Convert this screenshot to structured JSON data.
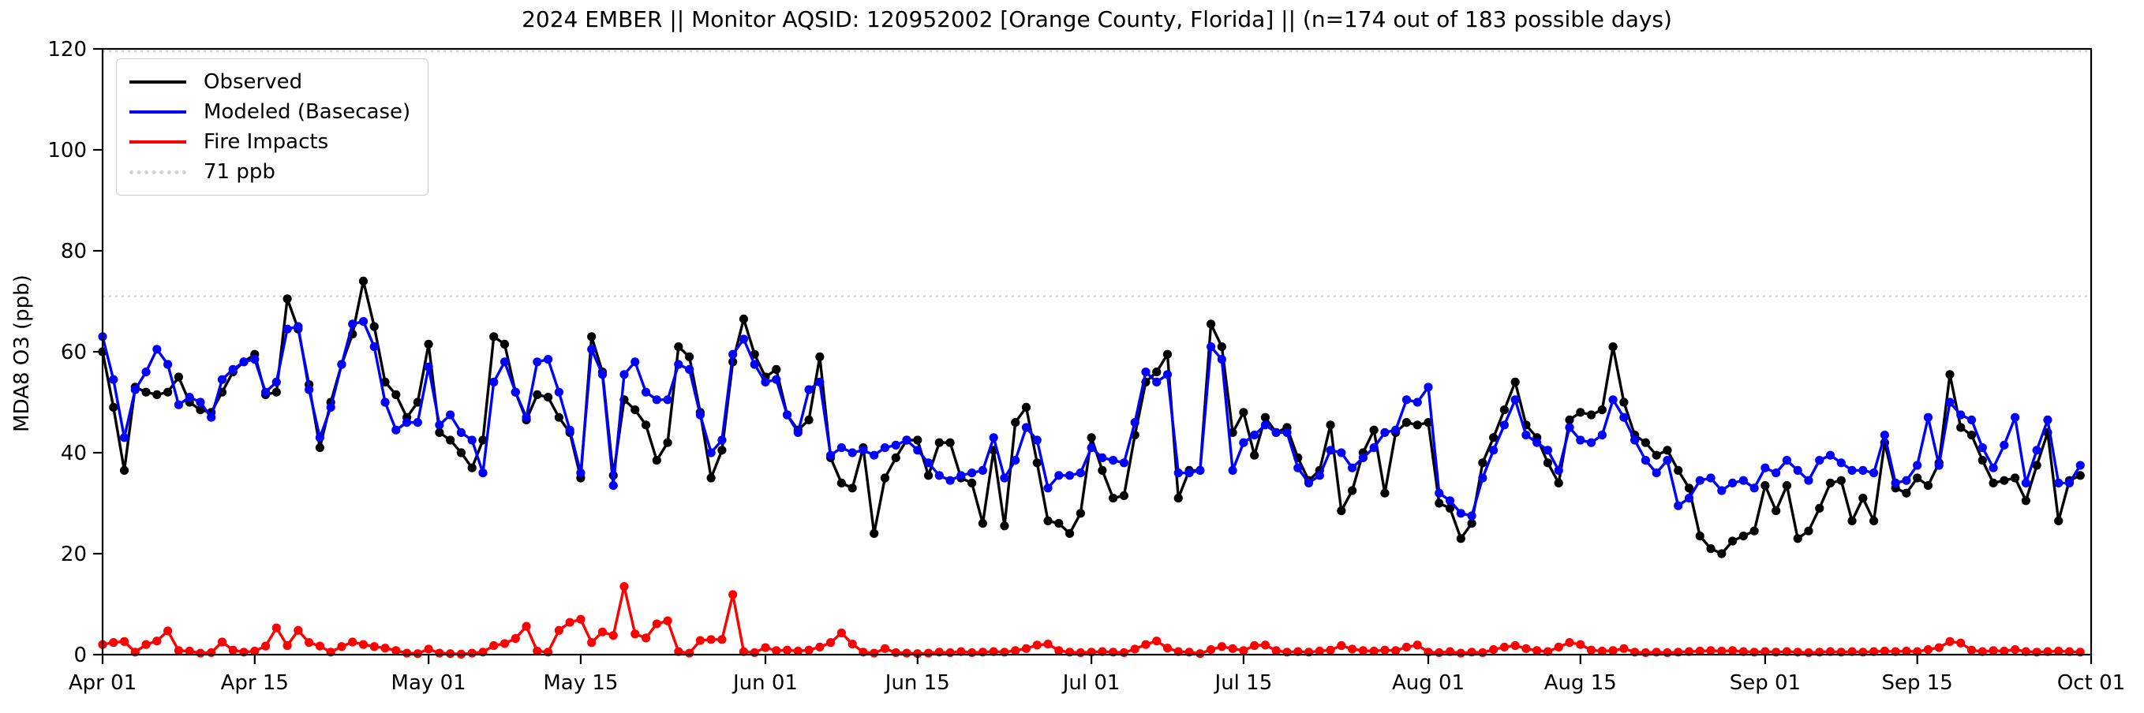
{
  "title": "2024 EMBER || Monitor AQSID: 120952002 [Orange County, Florida] || (n=174 out of 183 possible days)",
  "colors": {
    "observed": "#000000",
    "modeled": "#0000ff",
    "fire": "#ff0000",
    "threshold": "#d3d3d3",
    "axis": "#000000"
  },
  "legend": {
    "items": [
      {
        "key": "observed",
        "label": "Observed",
        "color": "#000000",
        "style": "solid"
      },
      {
        "key": "modeled",
        "label": "Modeled (Basecase)",
        "color": "#0000ff",
        "style": "solid"
      },
      {
        "key": "fire",
        "label": "Fire Impacts",
        "color": "#ff0000",
        "style": "solid"
      },
      {
        "key": "threshold",
        "label": "71 ppb",
        "color": "#d3d3d3",
        "style": "dotted"
      }
    ]
  },
  "chart_data": {
    "type": "line",
    "title": "2024 EMBER || Monitor AQSID: 120952002 [Orange County, Florida] || (n=174 out of 183 possible days)",
    "xlabel": "",
    "ylabel": "MDA8 O3 (ppb)",
    "ylim": [
      0,
      120
    ],
    "yticks": [
      0,
      20,
      40,
      60,
      80,
      100,
      120
    ],
    "grid": false,
    "legend_position": "upper left",
    "total_days": 183,
    "xtick_labels": [
      "Apr 01",
      "Apr 15",
      "May 01",
      "May 15",
      "Jun 01",
      "Jun 15",
      "Jul 01",
      "Jul 15",
      "Aug 01",
      "Aug 15",
      "Sep 01",
      "Sep 15",
      "Oct 01"
    ],
    "xtick_day_offsets": [
      0,
      14,
      30,
      44,
      61,
      75,
      91,
      105,
      122,
      136,
      153,
      167,
      183
    ],
    "reference_lines": [
      {
        "label": "71 ppb",
        "value": 71,
        "style": "dotted",
        "color": "#d3d3d3"
      },
      {
        "label": "",
        "value": 119.5,
        "style": "dotted",
        "color": "#d3d3d3"
      }
    ],
    "dates": [
      "Apr 01",
      "Apr 02",
      "Apr 03",
      "Apr 04",
      "Apr 05",
      "Apr 06",
      "Apr 07",
      "Apr 08",
      "Apr 09",
      "Apr 10",
      "Apr 11",
      "Apr 12",
      "Apr 13",
      "Apr 14",
      "Apr 15",
      "Apr 16",
      "Apr 17",
      "Apr 18",
      "Apr 19",
      "Apr 20",
      "Apr 21",
      "Apr 22",
      "Apr 23",
      "Apr 24",
      "Apr 25",
      "Apr 26",
      "Apr 27",
      "Apr 28",
      "Apr 29",
      "Apr 30",
      "May 01",
      "May 02",
      "May 03",
      "May 04",
      "May 05",
      "May 06",
      "May 07",
      "May 08",
      "May 09",
      "May 10",
      "May 11",
      "May 12",
      "May 13",
      "May 14",
      "May 15",
      "May 16",
      "May 17",
      "May 18",
      "May 19",
      "May 20",
      "May 21",
      "May 22",
      "May 23",
      "May 24",
      "May 25",
      "May 26",
      "May 27",
      "May 28",
      "May 29",
      "May 30",
      "May 31",
      "Jun 01",
      "Jun 02",
      "Jun 03",
      "Jun 04",
      "Jun 05",
      "Jun 06",
      "Jun 07",
      "Jun 08",
      "Jun 09",
      "Jun 10",
      "Jun 11",
      "Jun 12",
      "Jun 13",
      "Jun 14",
      "Jun 15",
      "Jun 16",
      "Jun 17",
      "Jun 18",
      "Jun 19",
      "Jun 20",
      "Jun 21",
      "Jun 22",
      "Jun 23",
      "Jun 24",
      "Jun 25",
      "Jun 26",
      "Jun 27",
      "Jun 28",
      "Jun 29",
      "Jun 30",
      "Jul 01",
      "Jul 02",
      "Jul 03",
      "Jul 04",
      "Jul 05",
      "Jul 06",
      "Jul 07",
      "Jul 08",
      "Jul 09",
      "Jul 10",
      "Jul 11",
      "Jul 12",
      "Jul 13",
      "Jul 14",
      "Jul 15",
      "Jul 16",
      "Jul 17",
      "Jul 18",
      "Jul 19",
      "Jul 20",
      "Jul 21",
      "Jul 22",
      "Jul 23",
      "Jul 24",
      "Jul 25",
      "Jul 26",
      "Jul 27",
      "Jul 28",
      "Jul 29",
      "Jul 30",
      "Jul 31",
      "Aug 01",
      "Aug 02",
      "Aug 03",
      "Aug 04",
      "Aug 05",
      "Aug 06",
      "Aug 07",
      "Aug 08",
      "Aug 09",
      "Aug 10",
      "Aug 11",
      "Aug 12",
      "Aug 13",
      "Aug 14",
      "Aug 15",
      "Aug 16",
      "Aug 17",
      "Aug 18",
      "Aug 19",
      "Aug 20",
      "Aug 21",
      "Aug 22",
      "Aug 23",
      "Aug 24",
      "Aug 25",
      "Aug 26",
      "Aug 27",
      "Aug 28",
      "Aug 29",
      "Aug 30",
      "Aug 31",
      "Sep 01",
      "Sep 02",
      "Sep 03",
      "Sep 04",
      "Sep 05",
      "Sep 06",
      "Sep 07",
      "Sep 08",
      "Sep 09",
      "Sep 10",
      "Sep 11",
      "Sep 12",
      "Sep 13",
      "Sep 14",
      "Sep 15",
      "Sep 16",
      "Sep 17",
      "Sep 18",
      "Sep 19",
      "Sep 20",
      "Sep 21",
      "Sep 22",
      "Sep 23",
      "Sep 24",
      "Sep 25",
      "Sep 26",
      "Sep 27",
      "Sep 28",
      "Sep 29",
      "Sep 30"
    ],
    "series": [
      {
        "name": "Observed",
        "color": "#000000",
        "values": [
          60,
          49,
          36.5,
          53,
          52,
          51.5,
          52,
          55,
          50,
          48.5,
          48,
          52,
          56,
          58,
          59.5,
          51.5,
          52,
          70.5,
          64.5,
          53.5,
          41,
          50,
          57.5,
          63.5,
          74,
          65,
          54,
          51.5,
          47,
          50,
          61.5,
          44,
          42.5,
          40,
          37,
          42.5,
          63,
          61.5,
          52,
          46.5,
          51.5,
          51,
          47,
          44,
          35,
          63,
          56,
          35.5,
          50.5,
          48.5,
          45.5,
          38.5,
          42,
          61,
          59,
          48,
          35,
          40.5,
          58,
          66.5,
          59.5,
          55,
          56.5,
          47.5,
          44.5,
          46.5,
          59,
          39,
          34,
          33,
          41,
          24,
          35,
          39,
          42.5,
          42.5,
          35.5,
          42,
          42,
          35,
          34,
          26,
          40.5,
          25.5,
          46,
          49,
          38,
          26.5,
          26,
          24,
          28,
          43,
          36.5,
          31,
          31.5,
          43.5,
          54,
          56,
          59.5,
          31,
          36.5,
          36.5,
          65.5,
          61,
          44,
          48,
          39.5,
          47,
          44,
          45,
          39,
          34.5,
          36.5,
          45.5,
          28.5,
          32.5,
          40,
          44.5,
          32,
          44,
          46,
          45.5,
          46,
          30,
          29,
          23,
          26,
          38,
          43,
          48.5,
          54,
          45.5,
          43,
          38,
          34,
          46.5,
          48,
          47.5,
          48.5,
          61,
          50,
          43.5,
          42,
          39.5,
          40.5,
          36.5,
          33,
          23.5,
          21,
          20,
          22.5,
          23.5,
          24.5,
          33.5,
          28.5,
          33.5,
          23,
          24.5,
          29,
          34,
          34.5,
          26.5,
          31,
          26.5,
          42,
          33,
          32,
          35,
          33.5,
          38,
          55.5,
          45,
          43.5,
          38.5,
          34,
          34.5,
          35,
          30.5,
          37.5,
          44,
          26.5,
          34.5,
          35.5
        ]
      },
      {
        "name": "Modeled (Basecase)",
        "color": "#0000ff",
        "values": [
          63,
          54.5,
          43,
          52.5,
          56,
          60.5,
          57.5,
          49.5,
          51,
          50,
          47,
          54.5,
          56.5,
          58,
          58.5,
          52,
          54,
          64.5,
          65,
          52.5,
          43,
          49,
          57.5,
          65.5,
          66,
          61,
          50,
          44.5,
          46,
          46,
          57,
          45.5,
          47.5,
          44,
          42.5,
          36,
          54,
          58,
          52,
          47,
          58,
          58.5,
          52,
          44.5,
          36,
          60.5,
          55.5,
          33.5,
          55.5,
          58,
          52,
          50.5,
          50.5,
          57.5,
          56.5,
          47.5,
          40,
          42.5,
          59.5,
          62.5,
          57.5,
          54,
          54.5,
          47.5,
          44,
          52.5,
          54,
          39.5,
          41,
          40,
          40.5,
          39.5,
          41,
          41.5,
          42.5,
          40.5,
          38,
          35.5,
          34.5,
          35.5,
          36,
          36.5,
          43,
          35,
          38.5,
          45,
          42.5,
          33,
          35.5,
          35.5,
          36,
          41,
          39,
          38.5,
          38,
          46,
          56,
          54,
          55.5,
          36,
          36,
          36.5,
          61,
          58.5,
          36.5,
          42,
          43.5,
          45.5,
          44,
          44,
          37,
          34,
          35.5,
          40.5,
          40,
          37,
          39,
          41,
          44,
          44.5,
          50.5,
          50,
          53,
          32,
          30.5,
          28,
          27.5,
          35,
          40.5,
          45.5,
          50.5,
          43.5,
          42,
          40.5,
          36.5,
          45,
          42.5,
          42,
          43.5,
          50.5,
          47,
          42.5,
          38.5,
          36,
          38.5,
          29.5,
          31,
          34.5,
          35,
          32.5,
          34,
          34.5,
          33,
          37,
          36,
          38.5,
          36.5,
          34.5,
          38.5,
          39.5,
          38,
          36.5,
          36.5,
          36,
          43.5,
          34,
          34.5,
          37.5,
          47,
          37.5,
          50,
          47.5,
          46.5,
          41,
          37,
          41.5,
          47,
          34,
          40.5,
          46.5,
          34,
          34,
          37.5
        ]
      },
      {
        "name": "Fire Impacts",
        "color": "#ff0000",
        "values": [
          2,
          2.4,
          2.6,
          0.5,
          2,
          2.7,
          4.7,
          0.8,
          0.7,
          0.3,
          0.4,
          2.5,
          0.9,
          0.5,
          0.7,
          1.7,
          5.3,
          1.8,
          4.8,
          2.4,
          1.7,
          0.5,
          1.6,
          2.5,
          2,
          1.6,
          1.3,
          0.8,
          0.3,
          0.2,
          1.1,
          0.3,
          0.2,
          0.1,
          0.3,
          0.5,
          1.8,
          2.2,
          3.2,
          5.6,
          0.7,
          0.5,
          4.8,
          6.4,
          7,
          2.4,
          4.5,
          3.8,
          13.5,
          4.1,
          3.3,
          6.1,
          6.7,
          0.6,
          0.3,
          2.8,
          3,
          3,
          11.9,
          0.6,
          0.4,
          1.4,
          0.8,
          0.9,
          0.7,
          0.9,
          1.5,
          2.4,
          4.3,
          2.1,
          0.5,
          0.3,
          1.2,
          0.4,
          0.3,
          0.2,
          0.3,
          0.5,
          0.4,
          0.6,
          0.4,
          0.5,
          0.6,
          0.5,
          0.8,
          1.2,
          1.9,
          2.1,
          0.8,
          0.5,
          0.4,
          0.5,
          0.6,
          0.5,
          0.4,
          1.1,
          2,
          2.7,
          1.3,
          0.6,
          0.5,
          0.2,
          1,
          1.6,
          1.2,
          0.8,
          1.8,
          1.9,
          0.8,
          0.5,
          0.6,
          0.5,
          0.7,
          0.9,
          1.8,
          1.1,
          0.8,
          0.7,
          0.9,
          0.8,
          1.5,
          1.9,
          0.5,
          0.4,
          0.6,
          0.3,
          0.5,
          0.4,
          1,
          1.5,
          1.8,
          1.2,
          0.8,
          0.6,
          1.5,
          2.4,
          2,
          0.9,
          0.7,
          0.8,
          1.2,
          0.5,
          0.4,
          0.5,
          0.4,
          0.5,
          0.6,
          0.7,
          0.8,
          0.7,
          0.8,
          0.6,
          0.5,
          0.6,
          0.5,
          0.6,
          0.5,
          0.4,
          0.5,
          0.6,
          0.5,
          0.6,
          0.5,
          0.6,
          0.7,
          0.6,
          0.7,
          0.6,
          1,
          1.4,
          2.6,
          2.3,
          0.9,
          0.6,
          0.8,
          0.7,
          1,
          0.6,
          0.5,
          0.6,
          0.7,
          0.6,
          0.5
        ]
      }
    ]
  }
}
